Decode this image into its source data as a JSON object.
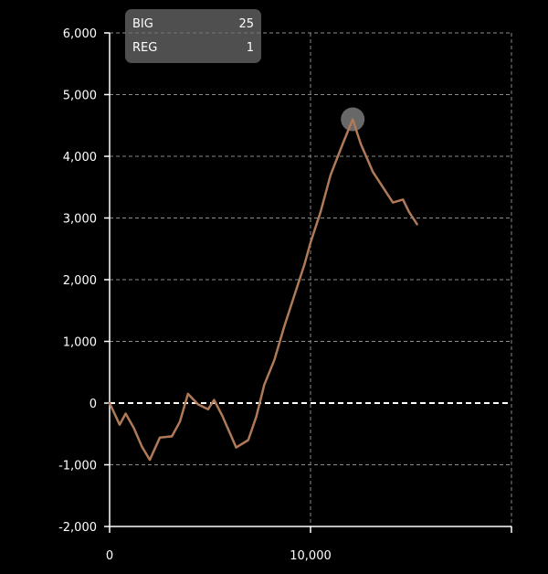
{
  "legend": {
    "big_label": "BIG",
    "big_value": "25",
    "reg_label": "REG",
    "reg_value": "1"
  },
  "chart_data": {
    "type": "line",
    "title": "",
    "xlabel": "",
    "ylabel": "",
    "xlim": [
      0,
      20000
    ],
    "ylim": [
      -2000,
      6000
    ],
    "x_ticks": [
      0,
      10000
    ],
    "x_tick_labels": [
      "0",
      "10,000"
    ],
    "y_ticks": [
      -2000,
      -1000,
      0,
      1000,
      2000,
      3000,
      4000,
      5000,
      6000
    ],
    "y_tick_labels": [
      "-2,000",
      "-1,000",
      "0",
      "1,000",
      "2,000",
      "3,000",
      "4,000",
      "5,000",
      "6,000"
    ],
    "grid": true,
    "zero_line": true,
    "line_color": "#b07a59",
    "highlight_color": "#7a7a7a",
    "highlight_point": {
      "x": 12100,
      "y": 4600
    },
    "series": [
      {
        "values": [
          {
            "x": 0,
            "y": 0
          },
          {
            "x": 500,
            "y": -350
          },
          {
            "x": 800,
            "y": -170
          },
          {
            "x": 1200,
            "y": -400
          },
          {
            "x": 1600,
            "y": -700
          },
          {
            "x": 2000,
            "y": -920
          },
          {
            "x": 2500,
            "y": -560
          },
          {
            "x": 3100,
            "y": -540
          },
          {
            "x": 3500,
            "y": -300
          },
          {
            "x": 3900,
            "y": 150
          },
          {
            "x": 4400,
            "y": -20
          },
          {
            "x": 4900,
            "y": -100
          },
          {
            "x": 5200,
            "y": 50
          },
          {
            "x": 5600,
            "y": -200
          },
          {
            "x": 6300,
            "y": -720
          },
          {
            "x": 6900,
            "y": -600
          },
          {
            "x": 7300,
            "y": -220
          },
          {
            "x": 7700,
            "y": 300
          },
          {
            "x": 8200,
            "y": 700
          },
          {
            "x": 8700,
            "y": 1250
          },
          {
            "x": 9300,
            "y": 1850
          },
          {
            "x": 9700,
            "y": 2250
          },
          {
            "x": 10000,
            "y": 2600
          },
          {
            "x": 10500,
            "y": 3100
          },
          {
            "x": 11000,
            "y": 3700
          },
          {
            "x": 11600,
            "y": 4200
          },
          {
            "x": 12100,
            "y": 4600
          },
          {
            "x": 12500,
            "y": 4200
          },
          {
            "x": 13100,
            "y": 3750
          },
          {
            "x": 13600,
            "y": 3500
          },
          {
            "x": 14100,
            "y": 3250
          },
          {
            "x": 14600,
            "y": 3300
          },
          {
            "x": 14900,
            "y": 3100
          },
          {
            "x": 15300,
            "y": 2900
          }
        ]
      }
    ]
  }
}
